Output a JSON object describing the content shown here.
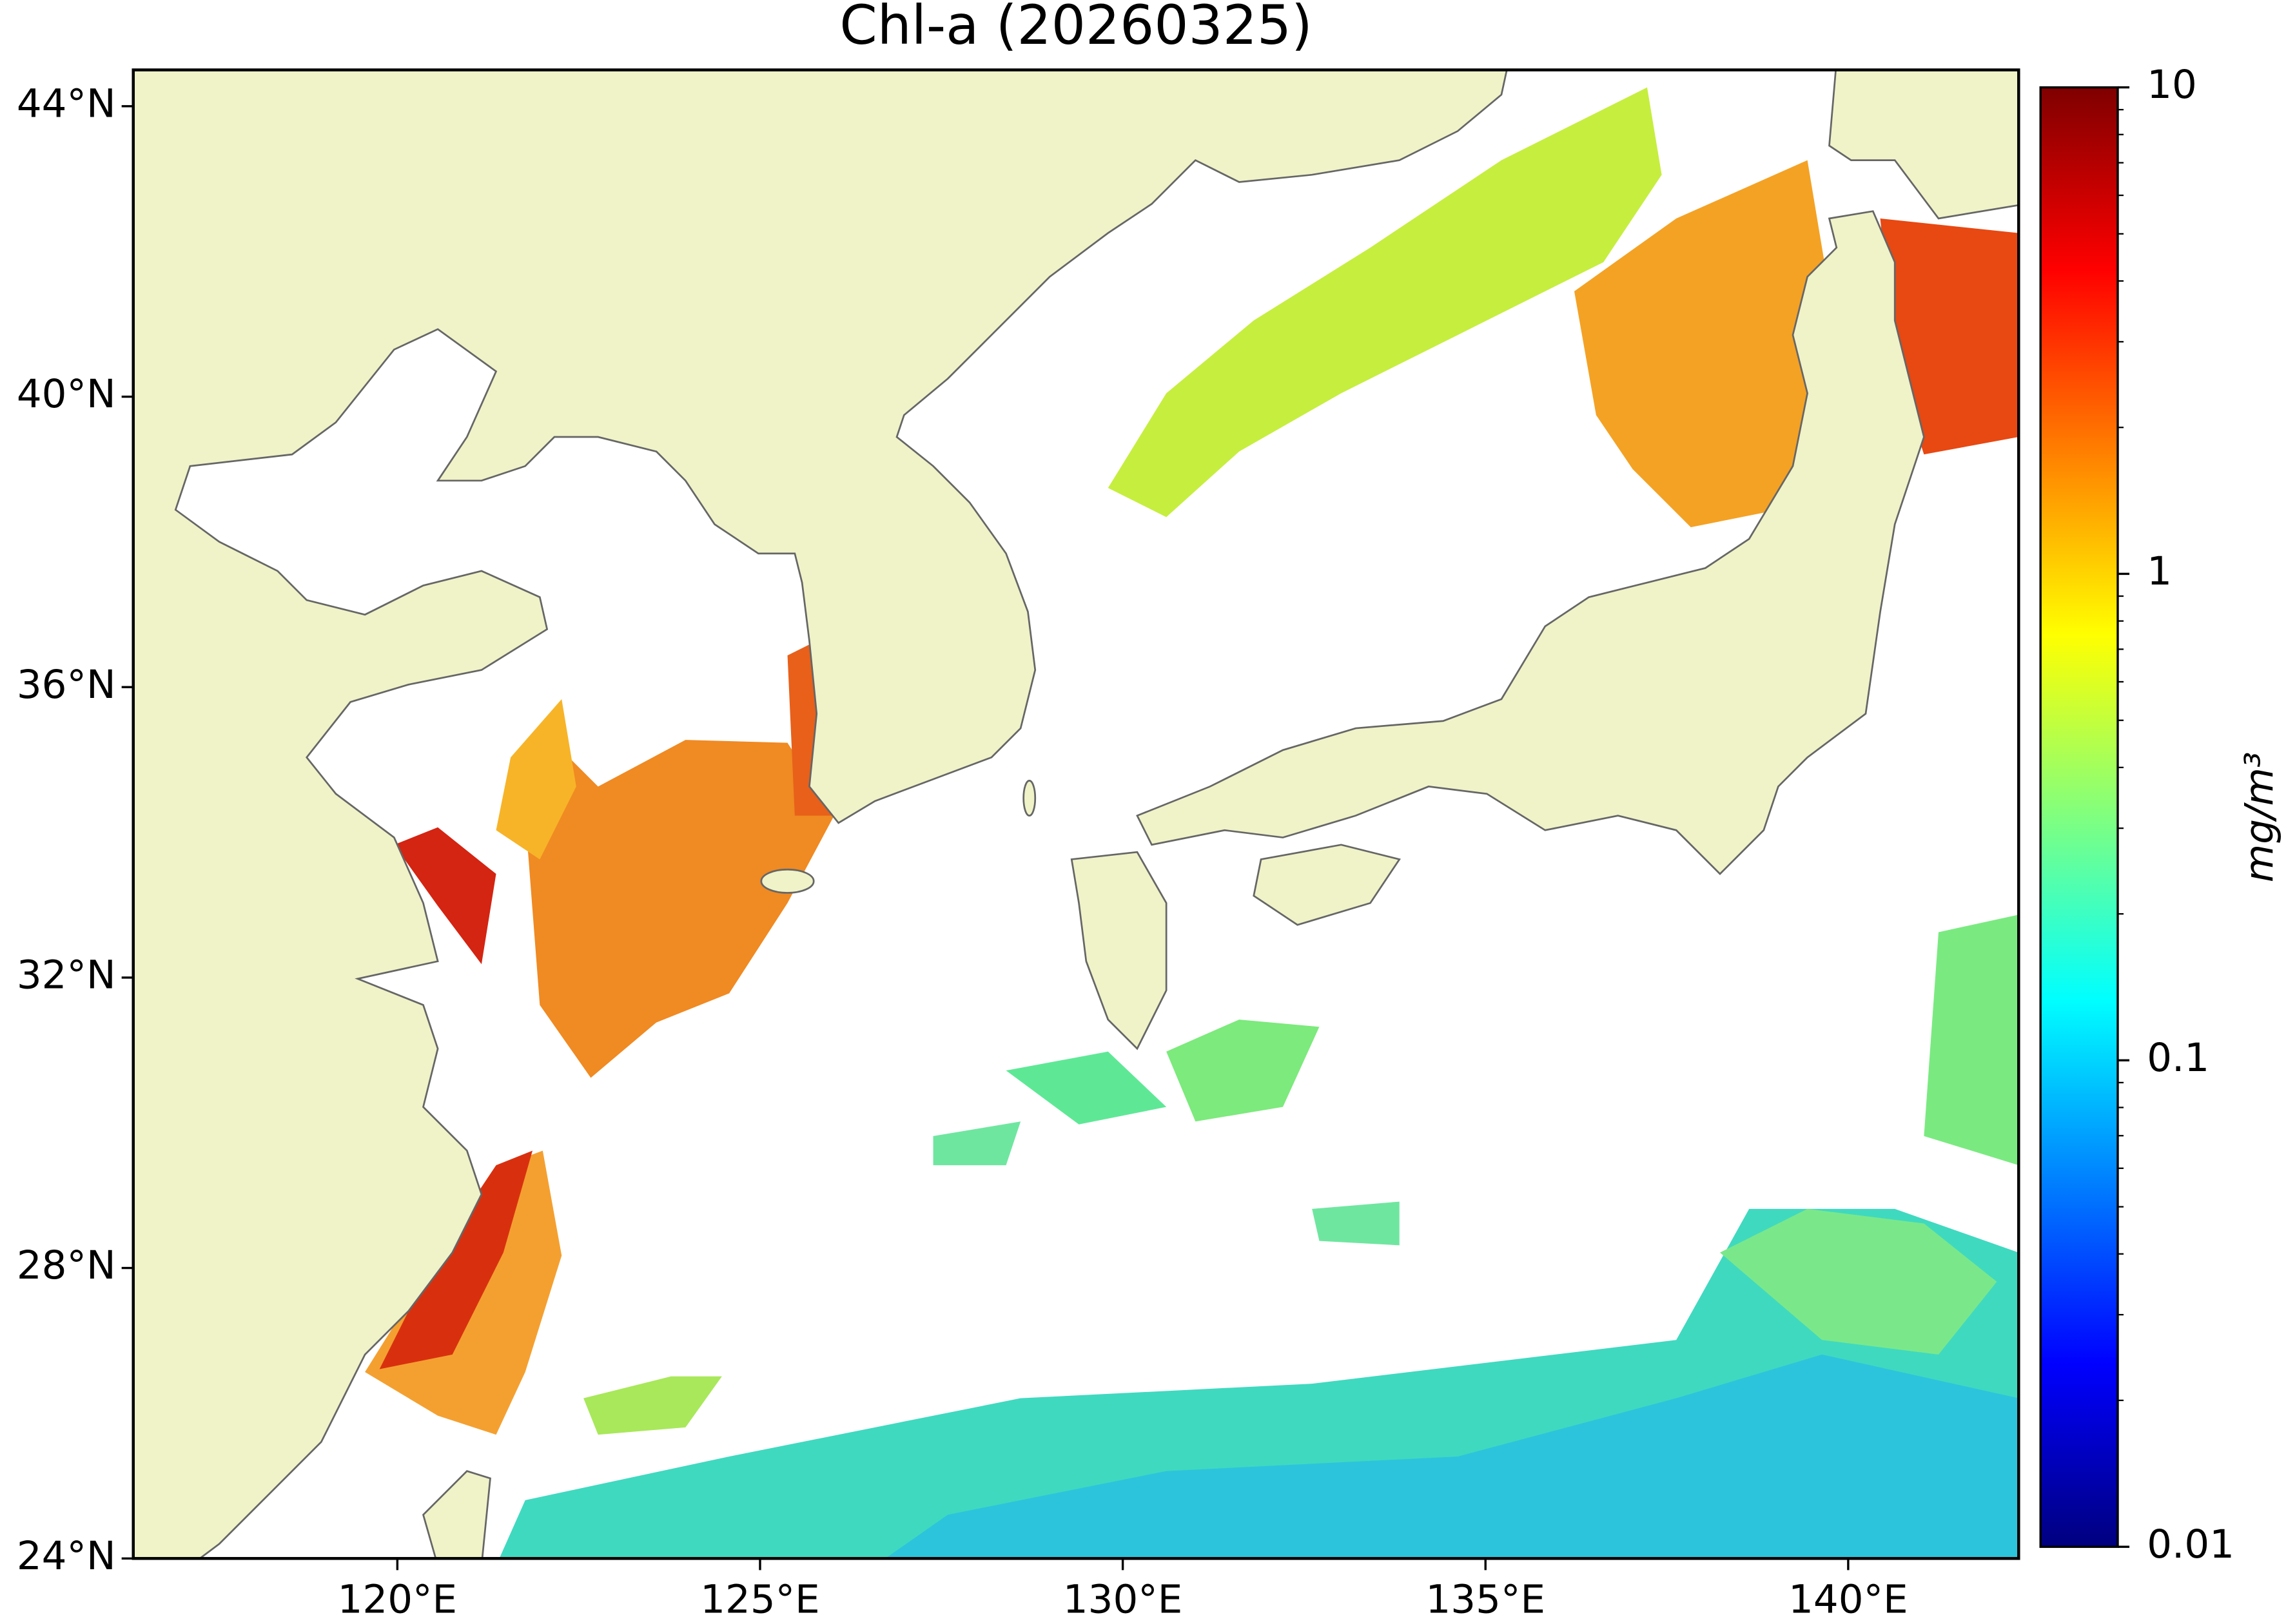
{
  "chart_data": {
    "type": "map",
    "title": "Chl-a (20260325)",
    "xlim": [
      116.36,
      142.35
    ],
    "ylim": [
      24,
      44.5
    ],
    "xticks": [
      {
        "value": 120,
        "label": "120°E"
      },
      {
        "value": 125,
        "label": "125°E"
      },
      {
        "value": 130,
        "label": "130°E"
      },
      {
        "value": 135,
        "label": "135°E"
      },
      {
        "value": 140,
        "label": "140°E"
      }
    ],
    "yticks": [
      {
        "value": 24,
        "label": "24°N"
      },
      {
        "value": 28,
        "label": "28°N"
      },
      {
        "value": 32,
        "label": "32°N"
      },
      {
        "value": 36,
        "label": "36°N"
      },
      {
        "value": 40,
        "label": "40°N"
      },
      {
        "value": 44,
        "label": "44°N"
      }
    ],
    "colorbar": {
      "label": "mg/m³",
      "log": true,
      "lim": [
        0.01,
        10
      ],
      "ticks": [
        0.01,
        0.1,
        1,
        10
      ]
    }
  }
}
